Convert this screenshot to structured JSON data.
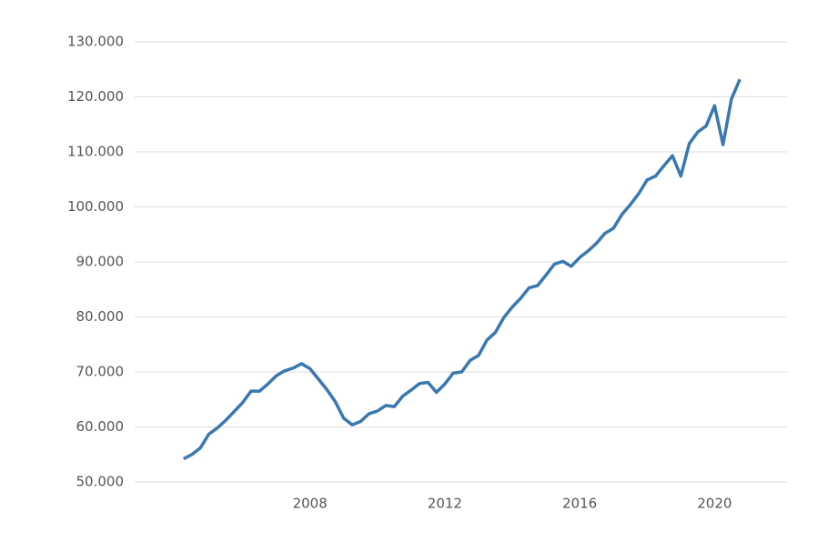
{
  "chart_data": {
    "type": "line",
    "x": [
      2004.25,
      2004.5,
      2004.75,
      2005,
      2005.25,
      2005.5,
      2005.75,
      2006,
      2006.25,
      2006.5,
      2006.75,
      2007,
      2007.25,
      2007.5,
      2007.75,
      2008,
      2008.25,
      2008.5,
      2008.75,
      2009,
      2009.25,
      2009.5,
      2009.75,
      2010,
      2010.25,
      2010.5,
      2010.75,
      2011,
      2011.25,
      2011.5,
      2011.75,
      2012,
      2012.25,
      2012.5,
      2012.75,
      2013,
      2013.25,
      2013.5,
      2013.75,
      2014,
      2014.25,
      2014.5,
      2014.75,
      2015,
      2015.25,
      2015.5,
      2015.75,
      2016,
      2016.25,
      2016.5,
      2016.75,
      2017,
      2017.25,
      2017.5,
      2017.75,
      2018,
      2018.25,
      2018.5,
      2018.75,
      2019,
      2019.25,
      2019.5,
      2019.75,
      2020,
      2020.25,
      2020.5,
      2020.75
    ],
    "series": [
      {
        "color": "#3a78b0",
        "values": [
          54200,
          55000,
          56200,
          58700,
          59800,
          61200,
          62800,
          64400,
          66500,
          66500,
          67800,
          69300,
          70200,
          70700,
          71500,
          70600,
          68700,
          66800,
          64600,
          61600,
          60400,
          61000,
          62400,
          62900,
          63900,
          63700,
          65600,
          66700,
          67900,
          68100,
          66300,
          67800,
          69800,
          70000,
          72100,
          73000,
          75800,
          77200,
          79900,
          81800,
          83400,
          85300,
          85700,
          87600,
          89600,
          90100,
          89200,
          90800,
          92000,
          93400,
          95200,
          96100,
          98600,
          100400,
          102400,
          104900,
          105600,
          107500,
          109300,
          105600,
          111500,
          113600,
          114700,
          118400,
          111300,
          119600,
          123200
        ]
      }
    ],
    "xlim": [
      2002.8,
      2022.15
    ],
    "xticks": [
      2008,
      2012,
      2016,
      2020
    ],
    "ylim": [
      50000,
      130000
    ],
    "yticks": [
      {
        "value": 50000,
        "label": "50.000"
      },
      {
        "value": 60000,
        "label": "60.000"
      },
      {
        "value": 70000,
        "label": "70.000"
      },
      {
        "value": 80000,
        "label": "80.000"
      },
      {
        "value": 90000,
        "label": "90.000"
      },
      {
        "value": 100000,
        "label": "100.000"
      },
      {
        "value": 110000,
        "label": "110.000"
      },
      {
        "value": 120000,
        "label": "120.000"
      },
      {
        "value": 130000,
        "label": "130.000"
      }
    ],
    "grid": true
  }
}
